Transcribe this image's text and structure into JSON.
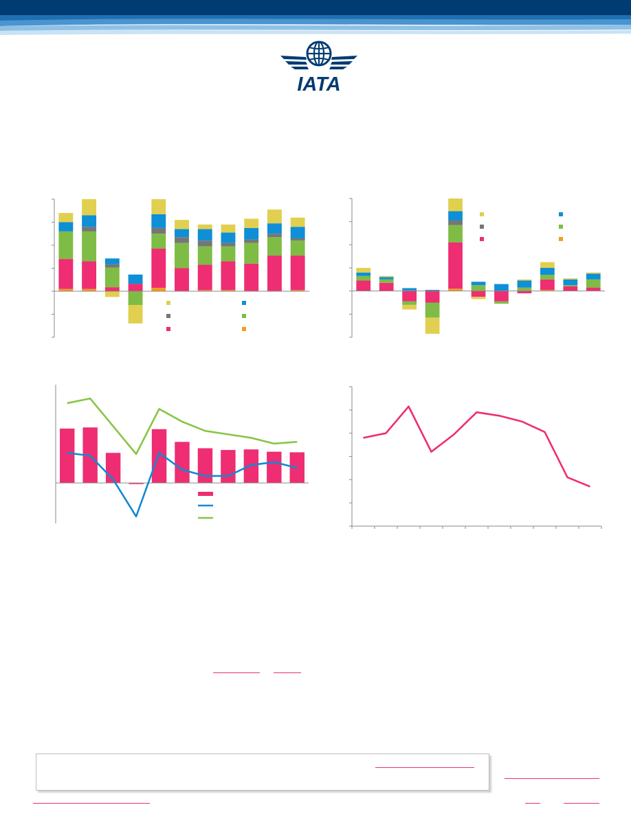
{
  "brand": {
    "logo_text": "IATA",
    "colors": {
      "navy": "#003b71",
      "mid_blue": "#2a7bbf",
      "light_blue": "#9fc9e8"
    }
  },
  "palette": {
    "yellow": "#e1cf4f",
    "cyan": "#0e8fd6",
    "gray": "#767676",
    "green": "#7fbc45",
    "pink": "#ee2d72",
    "orange": "#f39c1e",
    "line_blue": "#1289d0",
    "line_green": "#88c545"
  },
  "links": [
    "",
    "",
    "",
    "",
    "",
    "",
    ""
  ],
  "chart_data": [
    {
      "type": "bar",
      "stacked": true,
      "grid": false,
      "ylim": [
        -4,
        8
      ],
      "legend_position": "inside-lower-right",
      "stack_order": [
        "orange",
        "pink",
        "green",
        "gray",
        "cyan",
        "yellow"
      ],
      "bars": [
        {
          "orange": 0.2,
          "pink": 2.6,
          "green": 2.4,
          "gray": 0,
          "cyan": 0.8,
          "yellow": 0.8
        },
        {
          "orange": 0.2,
          "pink": 2.4,
          "green": 2.6,
          "gray": 0.4,
          "cyan": 1.0,
          "yellow": 1.4
        },
        {
          "orange": 0,
          "pink": 0.35,
          "green": 1.7,
          "gray": 0.3,
          "cyan": 0.5,
          "yellow": -0.5
        },
        {
          "orange": 0,
          "pink": 0.65,
          "green": -1.2,
          "gray": 0,
          "cyan": 0.8,
          "yellow": -1.6
        },
        {
          "orange": 0.3,
          "pink": 3.4,
          "green": 1.3,
          "gray": 0.5,
          "cyan": 1.2,
          "yellow": 1.3
        },
        {
          "orange": 0,
          "pink": 2.0,
          "green": 2.2,
          "gray": 0.5,
          "cyan": 0.7,
          "yellow": 0.8
        },
        {
          "orange": 0.1,
          "pink": 2.2,
          "green": 1.6,
          "gray": 0.5,
          "cyan": 1.0,
          "yellow": 0.4
        },
        {
          "orange": 0.1,
          "pink": 2.5,
          "green": 1.3,
          "gray": 0.3,
          "cyan": 0.9,
          "yellow": 0.7
        },
        {
          "orange": 0,
          "pink": 2.4,
          "green": 1.8,
          "gray": 0.3,
          "cyan": 1.0,
          "yellow": 0.8
        },
        {
          "orange": 0,
          "pink": 3.1,
          "green": 1.6,
          "gray": 0.3,
          "cyan": 0.9,
          "yellow": 1.2
        },
        {
          "orange": 0.1,
          "pink": 3.0,
          "green": 1.3,
          "gray": 0.2,
          "cyan": 1.0,
          "yellow": 0.8
        }
      ]
    },
    {
      "type": "bar",
      "stacked": true,
      "grid": false,
      "ylim": [
        -4,
        8
      ],
      "legend_position": "inside-upper-right",
      "stack_order": [
        "orange",
        "pink",
        "green",
        "gray",
        "cyan",
        "yellow"
      ],
      "bars": [
        {
          "orange": 0,
          "pink": 0.9,
          "green": 0.4,
          "gray": 0,
          "cyan": 0.3,
          "yellow": 0.4
        },
        {
          "orange": 0,
          "pink": 0.7,
          "green": 0.3,
          "gray": 0,
          "cyan": 0.2,
          "yellow": 0.1
        },
        {
          "orange": 0,
          "pink": -0.9,
          "green": -0.3,
          "gray": 0.05,
          "cyan": 0.2,
          "yellow": -0.4
        },
        {
          "orange": 0,
          "pink": -1.0,
          "green": -1.3,
          "gray": 0,
          "cyan": 0.1,
          "yellow": -1.4
        },
        {
          "orange": 0.2,
          "pink": 4.0,
          "green": 1.5,
          "gray": 0.4,
          "cyan": 0.8,
          "yellow": 1.1
        },
        {
          "orange": 0,
          "pink": -0.5,
          "green": 0.5,
          "gray": 0,
          "cyan": 0.3,
          "yellow": -0.2
        },
        {
          "orange": 0,
          "pink": -0.9,
          "green": -0.2,
          "gray": 0,
          "cyan": 0.6,
          "yellow": 0
        },
        {
          "orange": 0,
          "pink": -0.2,
          "green": 0.3,
          "gray": 0,
          "cyan": 0.6,
          "yellow": 0.1
        },
        {
          "orange": 0.1,
          "pink": 0.9,
          "green": 0.4,
          "gray": 0,
          "cyan": 0.6,
          "yellow": 0.5
        },
        {
          "orange": 0,
          "pink": 0.4,
          "green": 0.1,
          "gray": 0,
          "cyan": 0.5,
          "yellow": 0.1
        },
        {
          "orange": 0,
          "pink": 0.3,
          "green": 0.7,
          "gray": 0,
          "cyan": 0.5,
          "yellow": 0.1
        }
      ]
    },
    {
      "type": "bar",
      "grid": false,
      "ylim": [
        -3.5,
        8.5
      ],
      "legend_position": "inside-lower-center",
      "bars": [
        4.7,
        4.8,
        2.6,
        -0.1,
        4.65,
        3.55,
        3.0,
        2.85,
        2.9,
        2.7,
        2.65
      ],
      "series": [
        {
          "color": "blue",
          "type": "line",
          "values": [
            2.6,
            2.35,
            0.3,
            -2.9,
            2.6,
            1.15,
            0.6,
            0.6,
            1.55,
            1.8,
            1.3
          ]
        },
        {
          "color": "green",
          "type": "line",
          "values": [
            6.9,
            7.3,
            4.9,
            2.5,
            6.4,
            5.3,
            4.5,
            4.2,
            3.9,
            3.4,
            3.55
          ]
        }
      ]
    },
    {
      "type": "line",
      "grid": false,
      "ylim": [
        0,
        6
      ],
      "series": [
        {
          "color": "pink",
          "values": [
            3.8,
            4.0,
            5.15,
            3.2,
            3.95,
            4.9,
            4.75,
            4.5,
            4.05,
            2.1,
            1.7
          ]
        }
      ]
    }
  ]
}
